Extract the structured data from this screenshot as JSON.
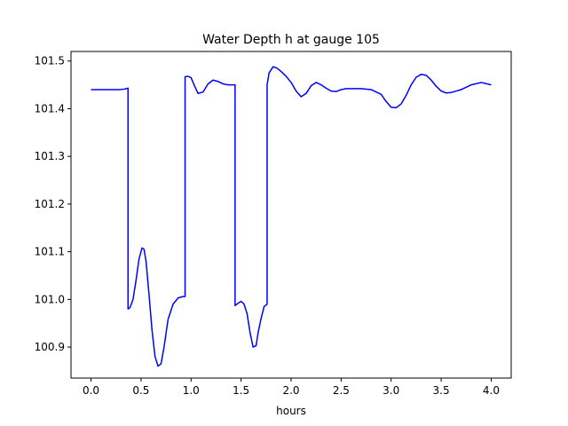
{
  "chart_data": {
    "type": "line",
    "title": "Water Depth h at gauge 105",
    "xlabel": "hours",
    "ylabel": "",
    "xlim": [
      -0.2,
      4.2
    ],
    "ylim": [
      100.835,
      101.52
    ],
    "xticks": [
      0.0,
      0.5,
      1.0,
      1.5,
      2.0,
      2.5,
      3.0,
      3.5,
      4.0
    ],
    "xtick_labels": [
      "0.0",
      "0.5",
      "1.0",
      "1.5",
      "2.0",
      "2.5",
      "3.0",
      "3.5",
      "4.0"
    ],
    "yticks": [
      100.9,
      101.0,
      101.1,
      101.2,
      101.3,
      101.4,
      101.5
    ],
    "ytick_labels": [
      "100.9",
      "101.0",
      "101.1",
      "101.2",
      "101.3",
      "101.4",
      "101.5"
    ],
    "grid": false,
    "series": [
      {
        "color": "#0000ff",
        "x": [
          0.0,
          0.1,
          0.2,
          0.28,
          0.33,
          0.37,
          0.37,
          0.39,
          0.42,
          0.45,
          0.48,
          0.51,
          0.53,
          0.55,
          0.58,
          0.61,
          0.64,
          0.67,
          0.7,
          0.73,
          0.77,
          0.82,
          0.87,
          0.92,
          0.94,
          0.94,
          0.97,
          1.0,
          1.03,
          1.07,
          1.12,
          1.17,
          1.22,
          1.27,
          1.32,
          1.37,
          1.41,
          1.44,
          1.44,
          1.47,
          1.5,
          1.53,
          1.56,
          1.59,
          1.62,
          1.65,
          1.67,
          1.7,
          1.73,
          1.76,
          1.76,
          1.78,
          1.82,
          1.86,
          1.9,
          1.95,
          2.0,
          2.05,
          2.1,
          2.15,
          2.2,
          2.25,
          2.3,
          2.35,
          2.4,
          2.45,
          2.5,
          2.55,
          2.6,
          2.7,
          2.8,
          2.9,
          2.95,
          3.0,
          3.05,
          3.1,
          3.15,
          3.2,
          3.25,
          3.3,
          3.35,
          3.4,
          3.45,
          3.5,
          3.55,
          3.6,
          3.65,
          3.7,
          3.75,
          3.8,
          3.9,
          4.0
        ],
        "y": [
          101.44,
          101.44,
          101.44,
          101.44,
          101.441,
          101.443,
          100.98,
          100.983,
          101.0,
          101.04,
          101.085,
          101.108,
          101.105,
          101.08,
          101.01,
          100.935,
          100.88,
          100.86,
          100.865,
          100.9,
          100.958,
          100.99,
          101.003,
          101.006,
          101.006,
          101.467,
          101.468,
          101.465,
          101.45,
          101.432,
          101.435,
          101.452,
          101.46,
          101.457,
          101.452,
          101.45,
          101.45,
          101.45,
          100.987,
          100.992,
          100.996,
          100.99,
          100.97,
          100.93,
          100.9,
          100.903,
          100.93,
          100.96,
          100.985,
          100.99,
          101.45,
          101.475,
          101.488,
          101.485,
          101.478,
          101.468,
          101.455,
          101.437,
          101.425,
          101.432,
          101.448,
          101.455,
          101.45,
          101.443,
          101.437,
          101.436,
          101.44,
          101.442,
          101.442,
          101.442,
          101.44,
          101.43,
          101.415,
          101.403,
          101.402,
          101.41,
          101.428,
          101.45,
          101.466,
          101.472,
          101.47,
          101.46,
          101.447,
          101.437,
          101.433,
          101.434,
          101.437,
          101.44,
          101.445,
          101.45,
          101.455,
          101.45
        ]
      }
    ]
  }
}
